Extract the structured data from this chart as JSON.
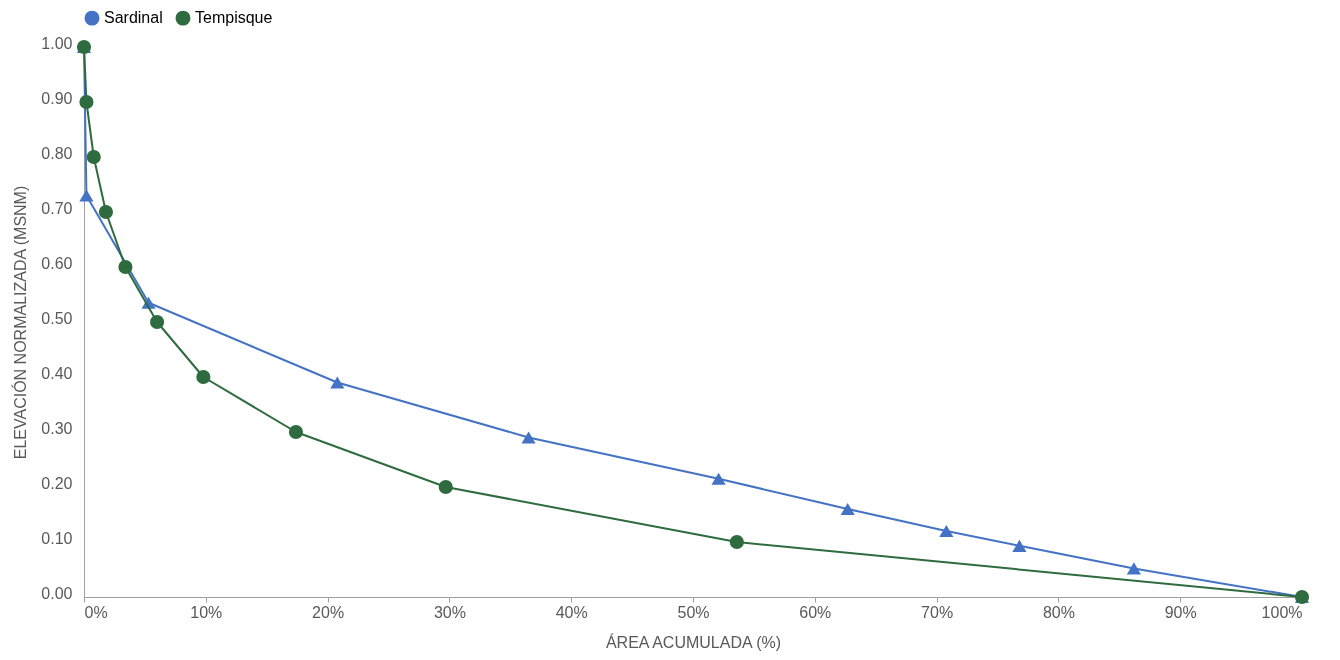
{
  "chart_data": {
    "type": "line",
    "xlabel": "ÁREA ACUMULADA  (%)",
    "ylabel": "ELEVACIÓN NORMALIZADA (MSNM)",
    "series": [
      {
        "name": "Sardinal",
        "color": "#4472c4",
        "marker": "triangle",
        "x": [
          0,
          0.2,
          5.3,
          20.8,
          36.5,
          52.1,
          62.7,
          70.8,
          76.8,
          86.2,
          100
        ],
        "values": [
          1.0,
          0.73,
          0.535,
          0.39,
          0.29,
          0.215,
          0.16,
          0.12,
          0.093,
          0.052,
          0
        ]
      },
      {
        "name": "Tempisque",
        "color": "#2e6b3e",
        "marker": "circle",
        "x": [
          0,
          0.2,
          0.8,
          1.8,
          3.4,
          6.0,
          9.8,
          17.4,
          29.7,
          53.6,
          100
        ],
        "values": [
          1.0,
          0.9,
          0.8,
          0.7,
          0.6,
          0.5,
          0.4,
          0.3,
          0.2,
          0.1,
          0
        ]
      }
    ],
    "xlim": [
      0,
      100
    ],
    "ylim": [
      0,
      1
    ],
    "xticks": [
      {
        "value": 0,
        "label": "0%"
      },
      {
        "value": 10,
        "label": "10%"
      },
      {
        "value": 20,
        "label": "20%"
      },
      {
        "value": 30,
        "label": "30%"
      },
      {
        "value": 40,
        "label": "40%"
      },
      {
        "value": 50,
        "label": "50%"
      },
      {
        "value": 60,
        "label": "60%"
      },
      {
        "value": 70,
        "label": "70%"
      },
      {
        "value": 80,
        "label": "80%"
      },
      {
        "value": 90,
        "label": "90%"
      },
      {
        "value": 100,
        "label": "100%"
      }
    ],
    "yticks": [
      {
        "value": 0,
        "label": "0.00"
      },
      {
        "value": 0.1,
        "label": "0.10"
      },
      {
        "value": 0.2,
        "label": "0.20"
      },
      {
        "value": 0.3,
        "label": "0.30"
      },
      {
        "value": 0.4,
        "label": "0.40"
      },
      {
        "value": 0.5,
        "label": "0.50"
      },
      {
        "value": 0.6,
        "label": "0.60"
      },
      {
        "value": 0.7,
        "label": "0.70"
      },
      {
        "value": 0.8,
        "label": "0.80"
      },
      {
        "value": 0.9,
        "label": "0.90"
      },
      {
        "value": 1.0,
        "label": "1.00"
      }
    ],
    "grid": false,
    "legend": "top",
    "line_style": "solid"
  }
}
